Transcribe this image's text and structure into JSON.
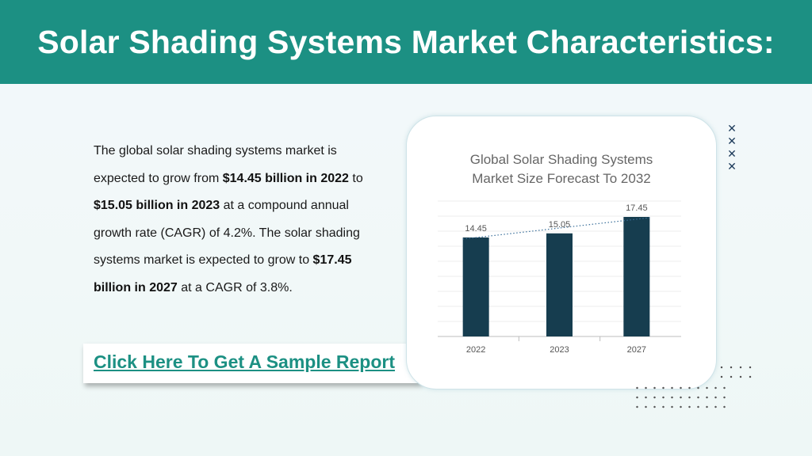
{
  "header": {
    "title": "Solar Shading Systems Market Characteristics:"
  },
  "paragraph": {
    "t1": "The global solar shading systems market is expected to grow from ",
    "b1": "$14.45 billion in 2022",
    "t2": " to ",
    "b2": "$15.05 billion in 2023",
    "t3": " at a compound annual growth rate (CAGR) of 4.2%. The solar shading systems market is expected to grow to ",
    "b3": "$17.45 billion in 2027",
    "t4": " at a CAGR of 3.8%."
  },
  "cta": {
    "label": "Click Here To Get A Sample Report"
  },
  "colors": {
    "header_bg": "#1c9083",
    "bar": "#163d4f",
    "link": "#1c9083"
  },
  "chart_data": {
    "type": "bar",
    "title_line1": "Global Solar Shading Systems",
    "title_line2": "Market Size Forecast To 2032",
    "categories": [
      "2022",
      "2023",
      "2027"
    ],
    "values": [
      14.45,
      15.05,
      17.45
    ],
    "value_labels": [
      "14.45",
      "15.05",
      "17.45"
    ],
    "ylim": [
      0,
      17.45
    ],
    "grid": true,
    "trendline": "dotted"
  }
}
